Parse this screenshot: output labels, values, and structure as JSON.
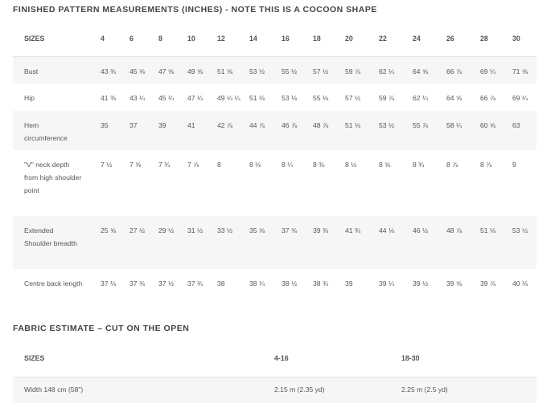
{
  "measurements": {
    "title": "FINISHED PATTERN MEASUREMENTS (INCHES) - NOTE THIS IS A COCOON SHAPE",
    "header_label": "SIZES",
    "sizes": [
      "4",
      "6",
      "8",
      "10",
      "12",
      "14",
      "16",
      "18",
      "20",
      "22",
      "24",
      "26",
      "28",
      "30"
    ],
    "rows": [
      {
        "label": "Bust",
        "values": [
          "43 ¾",
          "45 ⅝",
          "47 ⅝",
          "49 ⅝",
          "51 ⅝",
          "53 ½",
          "55 ½",
          "57 ½",
          "59 ⅞",
          "62 ¼",
          "64 ⅝",
          "66 ⅞",
          "69 ¼",
          "71 ⅝"
        ]
      },
      {
        "label": "Hip",
        "values": [
          "41 ⅜",
          "43 ¼",
          "45 ¼",
          "47 ¼",
          "49 ¼ ¼",
          "51 ⅛",
          "53 ⅛",
          "55 ⅛",
          "57 ½",
          "59 ⅞",
          "62 ¼",
          "64 ⅝",
          "66 ⅞",
          "69 ¼"
        ]
      },
      {
        "label": "Hem circumference",
        "values": [
          "35",
          "37",
          "39",
          "41",
          "42 ⅞",
          "44 ⅞",
          "46 ⅞",
          "48 ⅞",
          "51 ⅛",
          "53 ½",
          "55 ⅞",
          "58 ¼",
          "60 ⅝",
          "63"
        ]
      },
      {
        "label": "\"V\" neck depth from high shoulder point",
        "values": [
          "7 ½",
          "7 ⅝",
          "7 ¾",
          "7 ⅞",
          "8",
          "8 ⅛",
          "8 ¼",
          "8 ⅜",
          "8 ½",
          "8 ⅝",
          "8 ¾",
          "8 ⅞",
          "8 ⅞",
          "9"
        ]
      },
      {
        "label": "Extended Shoulder breadth",
        "values": [
          "25 ⅝",
          "27 ½",
          "29 ½",
          "31 ½",
          "33 ½",
          "35 ⅝",
          "37 ⅜",
          "39 ⅜",
          "41 ¾",
          "44 ⅛",
          "46 ½",
          "48 ⅞",
          "51 ⅛",
          "53 ½"
        ]
      },
      {
        "label": "Centre back length",
        "values": [
          "37 ⅛",
          "37 ⅜",
          "37 ½",
          "37 ¾",
          "38",
          "38 ¼",
          "38 ½",
          "38 ¾",
          "39",
          "39 ¼",
          "39 ½",
          "39 ⅝",
          "39 ⅞",
          "40 ⅛"
        ]
      }
    ]
  },
  "fabric": {
    "title": "FABRIC ESTIMATE – CUT ON THE OPEN",
    "header_label": "SIZES",
    "columns": [
      "4-16",
      "18-30"
    ],
    "rows": [
      {
        "label": "Width 148 cm (58\")",
        "values": [
          "2.15 m (2.35 yd)",
          "2.25 m (2.5 yd)"
        ]
      }
    ]
  }
}
